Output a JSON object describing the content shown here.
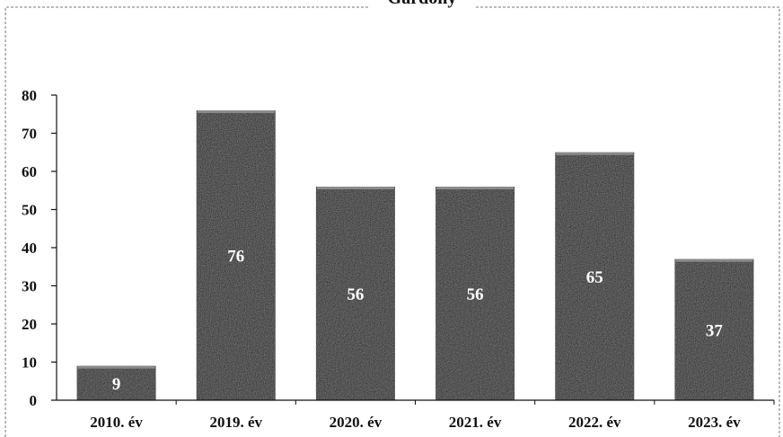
{
  "chart_data": {
    "type": "bar",
    "title": "Gárdony",
    "categories": [
      "2010. év",
      "2019. év",
      "2020. év",
      "2021. év",
      "2022. év",
      "2023. év"
    ],
    "values": [
      9,
      76,
      56,
      56,
      65,
      37
    ],
    "data_labels": [
      "9",
      "76",
      "56",
      "56",
      "65",
      "37"
    ],
    "y_ticks": [
      0,
      10,
      20,
      30,
      40,
      50,
      60,
      70,
      80
    ],
    "ylim": [
      0,
      80
    ],
    "xlabel": "",
    "ylabel": "",
    "grid": false,
    "legend": "none",
    "colors": {
      "bar": "#1c1c1c",
      "bar_top": "#8a8a8a",
      "label": "#ffffff",
      "axis": "#111111",
      "frame": "#777777"
    }
  }
}
